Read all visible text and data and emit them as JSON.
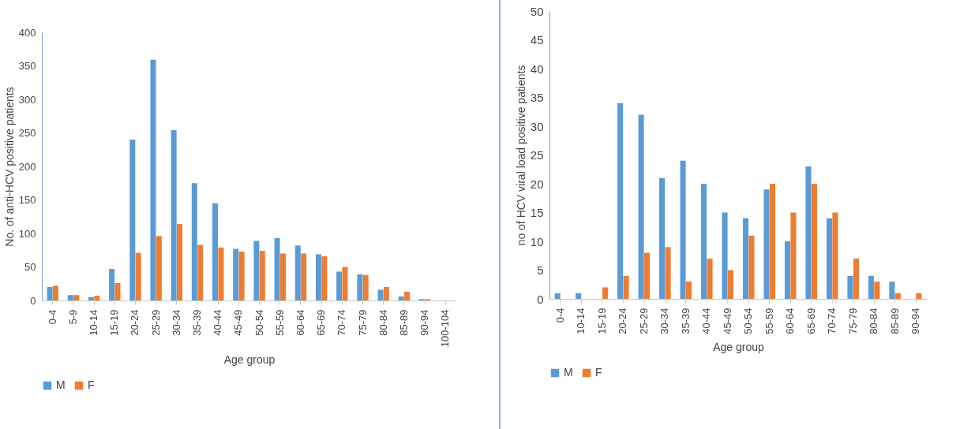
{
  "chart_data": [
    {
      "type": "bar",
      "xlabel": "Age group",
      "ylabel": "No. of anti-HCV positive patients",
      "categories": [
        "0-4",
        "5-9",
        "10-14",
        "15-19",
        "20-24",
        "25-29",
        "30-34",
        "35-39",
        "40-44",
        "45-49",
        "50-54",
        "55-59",
        "60-64",
        "65-69",
        "70-74",
        "75-79",
        "80-84",
        "85-89",
        "90-94",
        "100-104"
      ],
      "series": [
        {
          "name": "M",
          "color": "#5b9bd5",
          "values": [
            20,
            8,
            5,
            47,
            240,
            359,
            254,
            175,
            145,
            77,
            89,
            93,
            82,
            69,
            43,
            39,
            16,
            6,
            2,
            0
          ]
        },
        {
          "name": "F",
          "color": "#ed7d31",
          "values": [
            22,
            8,
            7,
            26,
            71,
            96,
            114,
            83,
            79,
            73,
            74,
            70,
            70,
            66,
            50,
            38,
            20,
            13,
            2,
            0
          ]
        }
      ],
      "ylim": [
        0,
        400
      ],
      "yticks": [
        0,
        50,
        100,
        150,
        200,
        250,
        300,
        350,
        400
      ],
      "grid": false,
      "legend": "bottom"
    },
    {
      "type": "bar",
      "xlabel": "Age group",
      "ylabel": "no of HCV viral load positive patients",
      "categories": [
        "0-4",
        "10-14",
        "15-19",
        "20-24",
        "25-29",
        "30-34",
        "35-39",
        "40-44",
        "45-49",
        "50-54",
        "55-59",
        "60-64",
        "65-69",
        "70-74",
        "75-79",
        "80-84",
        "85-89",
        "90-94"
      ],
      "series": [
        {
          "name": "M",
          "color": "#5b9bd5",
          "values": [
            1,
            1,
            0,
            34,
            32,
            21,
            24,
            20,
            15,
            14,
            19,
            10,
            23,
            14,
            4,
            4,
            3,
            0
          ]
        },
        {
          "name": "F",
          "color": "#ed7d31",
          "values": [
            0,
            0,
            2,
            4,
            8,
            9,
            3,
            7,
            5,
            11,
            20,
            15,
            20,
            15,
            7,
            3,
            1,
            1
          ]
        }
      ],
      "ylim": [
        0,
        50
      ],
      "yticks": [
        0,
        5,
        10,
        15,
        20,
        25,
        30,
        35,
        40,
        45,
        50
      ],
      "grid": false,
      "legend": "bottom"
    }
  ]
}
